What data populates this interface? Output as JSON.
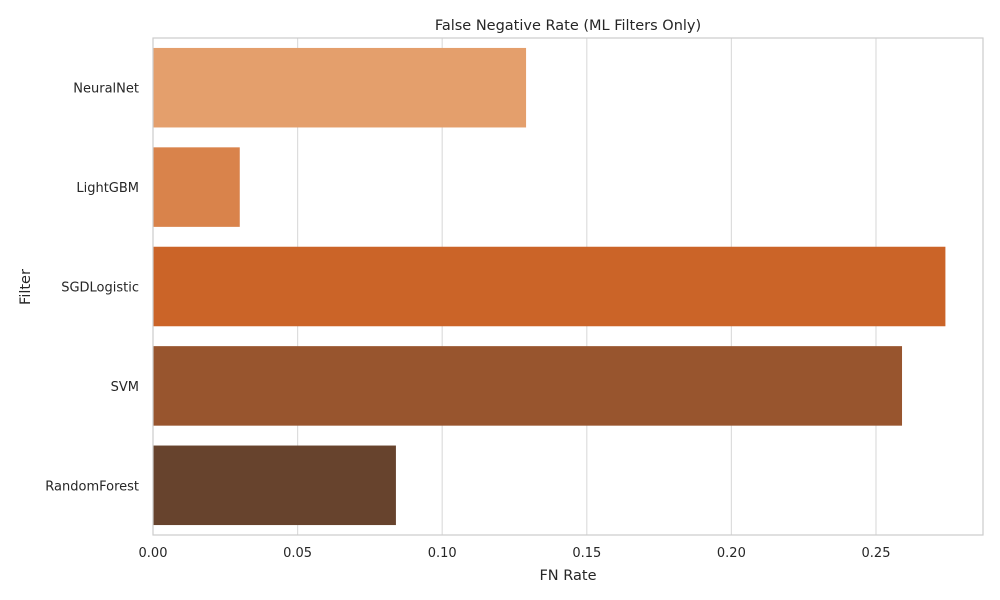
{
  "chart_data": {
    "type": "bar",
    "orientation": "horizontal",
    "title": "False Negative Rate (ML Filters Only)",
    "xlabel": "FN Rate",
    "ylabel": "Filter",
    "categories": [
      "NeuralNet",
      "LightGBM",
      "SGDLogistic",
      "SVM",
      "RandomForest"
    ],
    "values": [
      0.129,
      0.03,
      0.274,
      0.259,
      0.084
    ],
    "colors": [
      "#e49f6c",
      "#d9834b",
      "#cb6428",
      "#98552e",
      "#67432d"
    ],
    "xlim": [
      0,
      0.287
    ],
    "xticks": [
      0.0,
      0.05,
      0.1,
      0.15,
      0.2,
      0.25
    ],
    "xtick_labels": [
      "0.00",
      "0.05",
      "0.10",
      "0.15",
      "0.20",
      "0.25"
    ],
    "grid": "x-axis vertical lines",
    "legend": "none"
  }
}
